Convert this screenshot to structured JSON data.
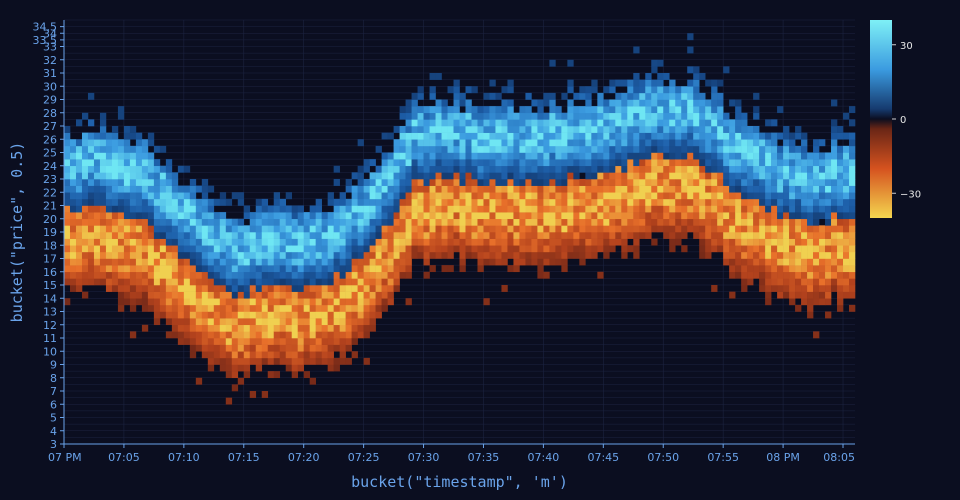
{
  "chart_data": {
    "type": "heatmap",
    "xlabel": "bucket(\"timestamp\", 'm')",
    "ylabel": "bucket(\"price\", 0.5)",
    "x_ticks": [
      "07 PM",
      "07:05",
      "07:10",
      "07:15",
      "07:20",
      "07:25",
      "07:30",
      "07:35",
      "07:40",
      "07:45",
      "07:50",
      "07:55",
      "08 PM",
      "08:05"
    ],
    "x_range_minutes": [
      0,
      66
    ],
    "y_ticks": [
      "3",
      "4",
      "5",
      "6",
      "7",
      "8",
      "9",
      "10",
      "11",
      "12",
      "13",
      "14",
      "15",
      "16",
      "17",
      "18",
      "19",
      "20",
      "21",
      "22",
      "23",
      "24",
      "25",
      "26",
      "27",
      "28",
      "29",
      "30",
      "31",
      "32",
      "33",
      "33.5",
      "34",
      "34.5"
    ],
    "y_range": [
      3,
      35
    ],
    "y_bucket": 0.5,
    "colorbar": {
      "ticks": [
        "30",
        "0",
        "−30"
      ],
      "range": [
        -40,
        40
      ],
      "positive_colors": [
        "#0f2a57",
        "#1d5ea8",
        "#3b9be0",
        "#6fe6f3"
      ],
      "negative_colors": [
        "#5a1e16",
        "#b5431d",
        "#e8702a",
        "#f0d050"
      ]
    },
    "band_center_by_minute": [
      [
        0,
        20.5
      ],
      [
        3,
        20.5
      ],
      [
        6,
        20.0
      ],
      [
        9,
        17.5
      ],
      [
        12,
        15.0
      ],
      [
        14,
        13.8
      ],
      [
        16,
        14.5
      ],
      [
        20,
        14.5
      ],
      [
        23,
        15.5
      ],
      [
        25,
        17.5
      ],
      [
        27,
        19.5
      ],
      [
        29,
        22.5
      ],
      [
        31,
        23.0
      ],
      [
        35,
        22.5
      ],
      [
        40,
        22.5
      ],
      [
        44,
        23.0
      ],
      [
        46,
        23.5
      ],
      [
        49,
        24.5
      ],
      [
        52,
        24.3
      ],
      [
        55,
        22.5
      ],
      [
        58,
        20.5
      ],
      [
        61,
        19.5
      ],
      [
        63,
        19.5
      ],
      [
        66,
        20.0
      ]
    ],
    "band_notes": "Each minute: cells above the center are positive (blue, peak ~+35 near top band), cells below are negative (orange/yellow, peak ~-35 just below center); band spans roughly 6 price units above and 7 below the center."
  }
}
